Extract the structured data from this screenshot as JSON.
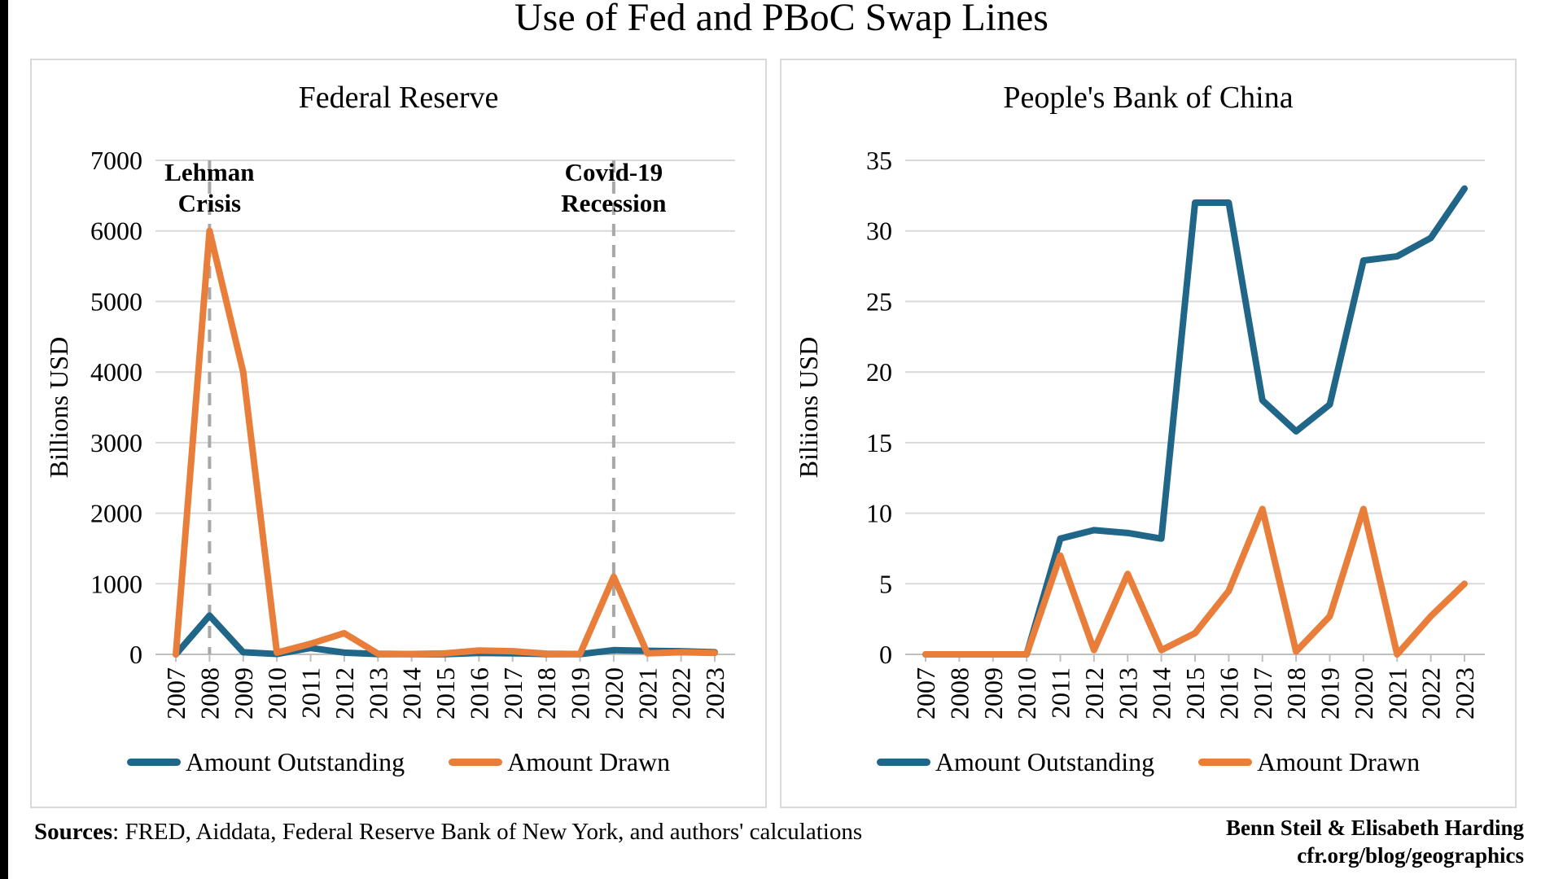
{
  "page": {
    "title": "Use of Fed and PBoC Swap Lines",
    "footer": {
      "sources_label": "Sources",
      "sources_rest": ": FRED, Aiddata, Federal Reserve Bank of New York, and authors' calculations",
      "credit_line1": "Benn Steil & Elisabeth Harding",
      "credit_line2": "cfr.org/blog/geographics"
    },
    "colors": {
      "outstanding": "#1F6688",
      "drawn": "#E87E3A",
      "gridline": "#D9D9D9",
      "axis": "#BFBFBF",
      "dashed_line": "#A8A8A8",
      "panel_border": "#D9D9D9"
    }
  },
  "chart_data": [
    {
      "id": "fed",
      "type": "line",
      "title": "Federal Reserve",
      "ylabel": "Billions USD",
      "ylim": [
        0,
        7000
      ],
      "ystep": 1000,
      "grid": true,
      "legend_position": "bottom",
      "categories": [
        "2007",
        "2008",
        "2009",
        "2010",
        "2011",
        "2012",
        "2013",
        "2014",
        "2015",
        "2016",
        "2017",
        "2018",
        "2019",
        "2020",
        "2021",
        "2022",
        "2023"
      ],
      "series": [
        {
          "name": "Amount Outstanding",
          "color_key": "outstanding",
          "values": [
            0,
            550,
            30,
            5,
            90,
            25,
            5,
            3,
            3,
            20,
            15,
            5,
            3,
            60,
            50,
            45,
            30
          ]
        },
        {
          "name": "Amount Drawn",
          "color_key": "drawn",
          "values": [
            0,
            6000,
            4000,
            25,
            150,
            300,
            10,
            5,
            15,
            55,
            45,
            10,
            5,
            1100,
            15,
            30,
            20
          ]
        }
      ],
      "annotations": [
        {
          "year": "2008",
          "label_lines": [
            "Lehman",
            "Crisis"
          ]
        },
        {
          "year": "2020",
          "label_lines": [
            "Covid-19",
            "Recession"
          ]
        }
      ]
    },
    {
      "id": "pboc",
      "type": "line",
      "title": "People's Bank of China",
      "ylabel": "Biliions USD",
      "ylim": [
        0,
        35
      ],
      "ystep": 5,
      "grid": true,
      "legend_position": "bottom",
      "categories": [
        "2007",
        "2008",
        "2009",
        "2010",
        "2011",
        "2012",
        "2013",
        "2014",
        "2015",
        "2016",
        "2017",
        "2018",
        "2019",
        "2020",
        "2021",
        "2022",
        "2023"
      ],
      "series": [
        {
          "name": "Amount Outstanding",
          "color_key": "outstanding",
          "values": [
            0,
            0,
            0,
            0,
            8.2,
            8.8,
            8.6,
            8.2,
            32,
            32,
            18,
            15.8,
            17.7,
            27.9,
            28.2,
            29.5,
            33
          ]
        },
        {
          "name": "Amount Drawn",
          "color_key": "drawn",
          "values": [
            0,
            0,
            0,
            0,
            7,
            0.3,
            5.7,
            0.3,
            1.5,
            4.5,
            10.3,
            0.2,
            2.7,
            10.3,
            0,
            2.7,
            5
          ]
        }
      ],
      "annotations": []
    }
  ]
}
